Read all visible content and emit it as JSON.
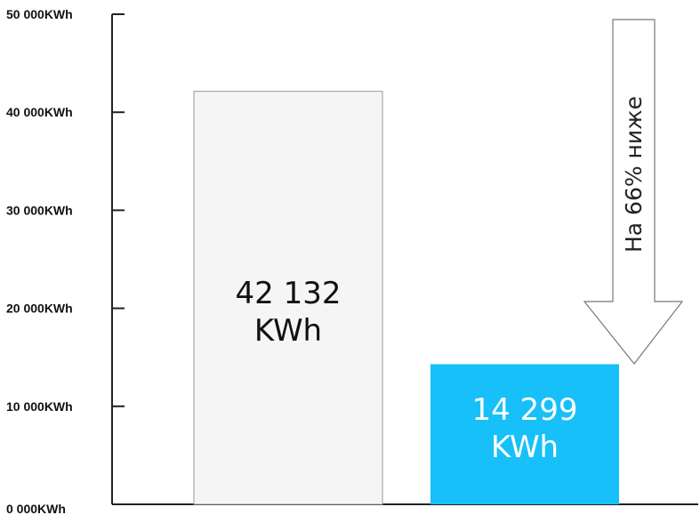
{
  "chart_data": {
    "type": "bar",
    "ylim": [
      0,
      50000
    ],
    "y_ticks": [
      {
        "value": 0,
        "label": "0 000KWh"
      },
      {
        "value": 10000,
        "label": "10 000KWh"
      },
      {
        "value": 20000,
        "label": "20 000KWh"
      },
      {
        "value": 30000,
        "label": "30 000KWh"
      },
      {
        "value": 40000,
        "label": "40 000KWh"
      },
      {
        "value": 50000,
        "label": "50 000KWh"
      }
    ],
    "bars": [
      {
        "value": 42132,
        "label_lines": [
          "42 132",
          "KWh"
        ],
        "color": "#f5f5f5",
        "stroke": "#999999",
        "text_color": "#111111"
      },
      {
        "value": 14299,
        "label_lines": [
          "14 299",
          "KWh"
        ],
        "color": "#17c0f9",
        "stroke": "none",
        "text_color": "#ffffff"
      }
    ],
    "annotation": {
      "text": "На 66% ниже",
      "shape": "down-arrow"
    },
    "grid": false
  },
  "colors": {
    "axis": "#222222",
    "arrow_fill": "#ffffff",
    "arrow_stroke": "#777777"
  }
}
